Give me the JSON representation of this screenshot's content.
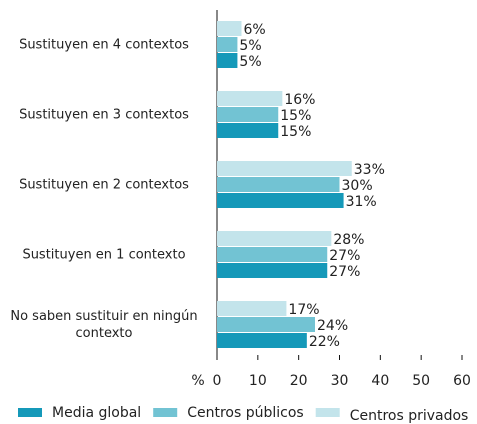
{
  "chart_data": {
    "type": "bar",
    "orientation": "horizontal",
    "categories": [
      "Sustituyen en 4 contextos",
      "Sustituyen en 3 contextos",
      "Sustituyen en 2 contextos",
      "Sustituyen en 1 contexto",
      "No saben sustituir en ningún contexto"
    ],
    "series": [
      {
        "name": "Media global",
        "color": "#1599b9",
        "values": [
          5,
          15,
          31,
          27,
          22
        ],
        "value_labels": [
          "5%",
          "15%",
          "31%",
          "27%",
          "22%"
        ]
      },
      {
        "name": "Centros públicos",
        "color": "#72c3d3",
        "values": [
          5,
          15,
          30,
          27,
          24
        ],
        "value_labels": [
          "5%",
          "15%",
          "30%",
          "27%",
          "24%"
        ]
      },
      {
        "name": "Centros privados",
        "color": "#c3e4eb",
        "values": [
          6,
          16,
          33,
          28,
          17
        ],
        "value_labels": [
          "6%",
          "16%",
          "33%",
          "28%",
          "17%"
        ]
      }
    ],
    "x_label": "%",
    "xlim": [
      0,
      60
    ],
    "xticks": [
      0,
      10,
      20,
      30,
      40,
      50,
      60
    ],
    "grid": false,
    "legend": "bottom"
  }
}
